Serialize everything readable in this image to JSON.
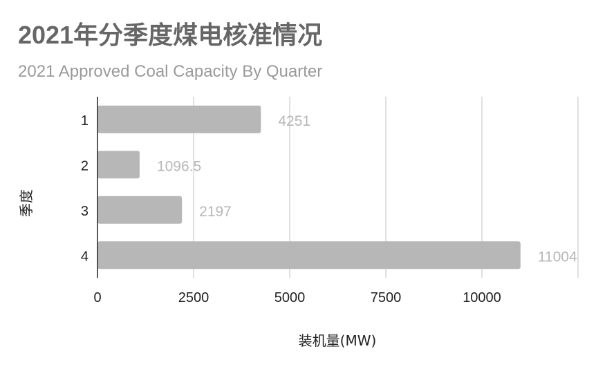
{
  "chart_data": {
    "type": "bar",
    "orientation": "horizontal",
    "title": "2021年分季度煤电核准情况",
    "subtitle": "2021 Approved Coal Capacity By Quarter",
    "xlabel": "装机量(MW)",
    "ylabel": "季度",
    "categories": [
      "1",
      "2",
      "3",
      "4"
    ],
    "values": [
      4251,
      1096.5,
      2197,
      11004
    ],
    "data_labels": [
      "4251",
      "1096.5",
      "2197",
      "11004"
    ],
    "xlim": [
      0,
      12500
    ],
    "xticks": [
      0,
      2500,
      5000,
      7500,
      10000
    ],
    "xtick_labels": [
      "0",
      "2500",
      "5000",
      "7500",
      "10000"
    ],
    "grid": "vertical",
    "bar_color": "#b7b7b7",
    "label_color": "#b7b7b7"
  }
}
